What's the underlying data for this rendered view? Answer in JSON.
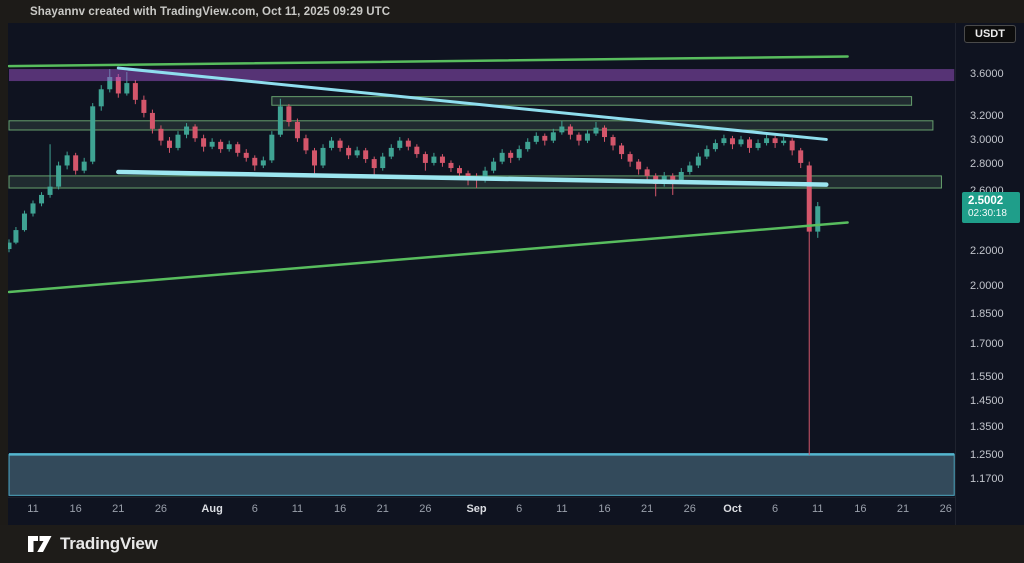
{
  "header": {
    "title": "Shayannv created with TradingView.com, Oct 11, 2025 09:29 UTC"
  },
  "symbol_badge": "USDT",
  "footer": {
    "brand": "TradingView",
    "logo_icon": "tradingview-tv-mark"
  },
  "price_axis": {
    "scale": "logarithmic",
    "ticks": [
      {
        "label": "3.6000",
        "price": 3.6
      },
      {
        "label": "3.2000",
        "price": 3.2
      },
      {
        "label": "3.0000",
        "price": 3.0
      },
      {
        "label": "2.8000",
        "price": 2.8
      },
      {
        "label": "2.6000",
        "price": 2.6
      },
      {
        "label": "2.4000",
        "price": 2.4
      },
      {
        "label": "2.2000",
        "price": 2.2
      },
      {
        "label": "2.0000",
        "price": 2.0
      },
      {
        "label": "1.8500",
        "price": 1.85
      },
      {
        "label": "1.7000",
        "price": 1.7
      },
      {
        "label": "1.5500",
        "price": 1.55
      },
      {
        "label": "1.4500",
        "price": 1.45
      },
      {
        "label": "1.3500",
        "price": 1.35
      },
      {
        "label": "1.2500",
        "price": 1.25
      },
      {
        "label": "1.1700",
        "price": 1.17
      }
    ],
    "last_price": {
      "label": "2.5002",
      "price": 2.5002,
      "countdown": "02:30:18",
      "color": "#1f9e8a"
    }
  },
  "date_axis": {
    "ticks": [
      {
        "label": "11",
        "i": 3
      },
      {
        "label": "16",
        "i": 8
      },
      {
        "label": "21",
        "i": 13
      },
      {
        "label": "26",
        "i": 18
      },
      {
        "label": "Aug",
        "i": 24,
        "bold": true
      },
      {
        "label": "6",
        "i": 29
      },
      {
        "label": "11",
        "i": 34
      },
      {
        "label": "16",
        "i": 39
      },
      {
        "label": "21",
        "i": 44
      },
      {
        "label": "26",
        "i": 49
      },
      {
        "label": "Sep",
        "i": 55,
        "bold": true
      },
      {
        "label": "6",
        "i": 60
      },
      {
        "label": "11",
        "i": 65
      },
      {
        "label": "16",
        "i": 70
      },
      {
        "label": "21",
        "i": 75
      },
      {
        "label": "26",
        "i": 80
      },
      {
        "label": "Oct",
        "i": 85,
        "bold": true
      },
      {
        "label": "6",
        "i": 90
      },
      {
        "label": "11",
        "i": 95
      },
      {
        "label": "16",
        "i": 100
      },
      {
        "label": "21",
        "i": 105
      },
      {
        "label": "26",
        "i": 110
      }
    ]
  },
  "chart_data": {
    "type": "candlestick",
    "quote_currency": "USDT",
    "scale": "log",
    "start_date": "2025-07-08",
    "visible_price_range": [
      1.11,
      4.11
    ],
    "current_price": 2.5002,
    "candles": [
      [
        2.22,
        2.28,
        2.2,
        2.26
      ],
      [
        2.26,
        2.36,
        2.25,
        2.34
      ],
      [
        2.34,
        2.47,
        2.33,
        2.45
      ],
      [
        2.45,
        2.54,
        2.43,
        2.52
      ],
      [
        2.52,
        2.6,
        2.5,
        2.58
      ],
      [
        2.58,
        2.97,
        2.56,
        2.64
      ],
      [
        2.64,
        2.83,
        2.62,
        2.8
      ],
      [
        2.8,
        2.91,
        2.77,
        2.88
      ],
      [
        2.88,
        2.9,
        2.73,
        2.76
      ],
      [
        2.76,
        2.86,
        2.74,
        2.83
      ],
      [
        2.83,
        3.33,
        2.81,
        3.3
      ],
      [
        3.3,
        3.5,
        3.26,
        3.46
      ],
      [
        3.46,
        3.66,
        3.43,
        3.58
      ],
      [
        3.58,
        3.61,
        3.38,
        3.42
      ],
      [
        3.42,
        3.63,
        3.4,
        3.52
      ],
      [
        3.52,
        3.55,
        3.32,
        3.36
      ],
      [
        3.36,
        3.4,
        3.2,
        3.24
      ],
      [
        3.24,
        3.27,
        3.06,
        3.1
      ],
      [
        3.1,
        3.13,
        2.96,
        3.0
      ],
      [
        3.0,
        3.03,
        2.9,
        2.94
      ],
      [
        2.94,
        3.08,
        2.92,
        3.05
      ],
      [
        3.05,
        3.15,
        3.02,
        3.12
      ],
      [
        3.12,
        3.14,
        2.99,
        3.02
      ],
      [
        3.02,
        3.05,
        2.91,
        2.95
      ],
      [
        2.95,
        3.02,
        2.93,
        2.99
      ],
      [
        2.99,
        3.01,
        2.9,
        2.93
      ],
      [
        2.93,
        3.0,
        2.91,
        2.97
      ],
      [
        2.97,
        2.99,
        2.87,
        2.9
      ],
      [
        2.9,
        2.93,
        2.83,
        2.86
      ],
      [
        2.86,
        2.88,
        2.76,
        2.8
      ],
      [
        2.8,
        2.87,
        2.78,
        2.84
      ],
      [
        2.84,
        3.08,
        2.82,
        3.05
      ],
      [
        3.05,
        3.37,
        3.03,
        3.3
      ],
      [
        3.3,
        3.32,
        3.12,
        3.16
      ],
      [
        3.16,
        3.19,
        2.99,
        3.02
      ],
      [
        3.02,
        3.05,
        2.89,
        2.92
      ],
      [
        2.92,
        2.94,
        2.73,
        2.8
      ],
      [
        2.8,
        2.97,
        2.78,
        2.94
      ],
      [
        2.94,
        3.03,
        2.92,
        3.0
      ],
      [
        3.0,
        3.02,
        2.91,
        2.94
      ],
      [
        2.94,
        2.96,
        2.85,
        2.88
      ],
      [
        2.88,
        2.95,
        2.86,
        2.92
      ],
      [
        2.92,
        2.94,
        2.82,
        2.85
      ],
      [
        2.85,
        2.87,
        2.72,
        2.78
      ],
      [
        2.78,
        2.9,
        2.76,
        2.87
      ],
      [
        2.87,
        2.97,
        2.85,
        2.94
      ],
      [
        2.94,
        3.03,
        2.92,
        3.0
      ],
      [
        3.0,
        3.02,
        2.92,
        2.95
      ],
      [
        2.95,
        2.97,
        2.86,
        2.89
      ],
      [
        2.89,
        2.91,
        2.76,
        2.82
      ],
      [
        2.82,
        2.9,
        2.8,
        2.87
      ],
      [
        2.87,
        2.89,
        2.79,
        2.82
      ],
      [
        2.82,
        2.84,
        2.75,
        2.78
      ],
      [
        2.78,
        2.8,
        2.71,
        2.74
      ],
      [
        2.74,
        2.76,
        2.65,
        2.71
      ],
      [
        2.71,
        2.74,
        2.63,
        2.69
      ],
      [
        2.69,
        2.79,
        2.67,
        2.76
      ],
      [
        2.76,
        2.86,
        2.74,
        2.83
      ],
      [
        2.83,
        2.93,
        2.81,
        2.9
      ],
      [
        2.9,
        2.92,
        2.82,
        2.86
      ],
      [
        2.86,
        2.96,
        2.84,
        2.93
      ],
      [
        2.93,
        3.02,
        2.91,
        2.99
      ],
      [
        2.99,
        3.07,
        2.97,
        3.04
      ],
      [
        3.04,
        3.06,
        2.96,
        3.0
      ],
      [
        3.0,
        3.1,
        2.98,
        3.07
      ],
      [
        3.07,
        3.17,
        3.05,
        3.12
      ],
      [
        3.12,
        3.14,
        3.01,
        3.05
      ],
      [
        3.05,
        3.07,
        2.96,
        3.0
      ],
      [
        3.0,
        3.09,
        2.98,
        3.06
      ],
      [
        3.06,
        3.16,
        3.04,
        3.11
      ],
      [
        3.11,
        3.13,
        2.99,
        3.03
      ],
      [
        3.03,
        3.05,
        2.92,
        2.96
      ],
      [
        2.96,
        2.98,
        2.85,
        2.89
      ],
      [
        2.89,
        2.91,
        2.79,
        2.83
      ],
      [
        2.83,
        2.85,
        2.73,
        2.77
      ],
      [
        2.77,
        2.79,
        2.68,
        2.72
      ],
      [
        2.72,
        2.74,
        2.57,
        2.66
      ],
      [
        2.66,
        2.75,
        2.64,
        2.72
      ],
      [
        2.72,
        2.74,
        2.58,
        2.69
      ],
      [
        2.69,
        2.78,
        2.67,
        2.75
      ],
      [
        2.75,
        2.83,
        2.73,
        2.8
      ],
      [
        2.8,
        2.9,
        2.78,
        2.87
      ],
      [
        2.87,
        2.96,
        2.85,
        2.93
      ],
      [
        2.93,
        3.01,
        2.91,
        2.98
      ],
      [
        2.98,
        3.05,
        2.96,
        3.02
      ],
      [
        3.02,
        3.04,
        2.93,
        2.97
      ],
      [
        2.97,
        3.04,
        2.95,
        3.01
      ],
      [
        3.01,
        3.03,
        2.9,
        2.94
      ],
      [
        2.94,
        3.01,
        2.92,
        2.98
      ],
      [
        2.98,
        3.05,
        2.96,
        3.02
      ],
      [
        3.02,
        3.04,
        2.94,
        2.98
      ],
      [
        2.98,
        3.03,
        2.96,
        3.0
      ],
      [
        3.0,
        3.02,
        2.88,
        2.92
      ],
      [
        2.92,
        2.94,
        2.78,
        2.82
      ],
      [
        2.8,
        2.83,
        1.253,
        2.33
      ],
      [
        2.33,
        2.53,
        2.29,
        2.5002
      ]
    ],
    "zones": [
      {
        "name": "supply-zone-purple",
        "price_top": 3.66,
        "price_bottom": 3.54,
        "i1": 0,
        "i2": 111,
        "fill": "rgba(158,84,202,0.50)",
        "border": "none",
        "over_candles": true
      },
      {
        "name": "supply-zone-green-a",
        "price_top": 3.39,
        "price_bottom": 3.31,
        "i1": 31,
        "i2": 106,
        "fill": "rgba(150,205,160,0.13)",
        "border": "#6fae74"
      },
      {
        "name": "supply-zone-green-b",
        "price_top": 3.17,
        "price_bottom": 3.09,
        "i1": 0,
        "i2": 108.5,
        "fill": "rgba(150,205,160,0.13)",
        "border": "#6fae74"
      },
      {
        "name": "demand-zone-green-c",
        "price_top": 2.72,
        "price_bottom": 2.63,
        "i1": 0,
        "i2": 109.5,
        "fill": "rgba(150,205,160,0.13)",
        "border": "#6fae74"
      },
      {
        "name": "demand-zone-blue",
        "price_top": 1.255,
        "price_bottom": 1.12,
        "i1": 0,
        "i2": 111,
        "fill": "rgba(110,165,190,0.38)",
        "border": "#54b6cf",
        "border_top_width": 2.5
      }
    ],
    "trendlines": [
      {
        "name": "green-upper-line",
        "i1": 0,
        "p1": 3.69,
        "i2": 98.5,
        "p2": 3.79,
        "color": "#58bd5e",
        "width": 2.5
      },
      {
        "name": "green-lower-line",
        "i1": 0,
        "p1": 1.97,
        "i2": 98.5,
        "p2": 2.39,
        "color": "#58bd5e",
        "width": 2.5
      },
      {
        "name": "cyan-descending-trendline",
        "i1": 13,
        "p1": 3.67,
        "i2": 96,
        "p2": 3.01,
        "color": "#8fdeee",
        "width": 3
      },
      {
        "name": "cyan-flat-trendline",
        "i1": 13,
        "p1": 2.75,
        "i2": 96,
        "p2": 2.655,
        "color": "#9ce6f0",
        "width": 4.5
      }
    ],
    "colors": {
      "up": "#3fa393",
      "down": "#d4566b",
      "background": "#0f1320",
      "last_price_badge": "#1f9e8a",
      "axis_text": "#c2c5cc"
    }
  }
}
